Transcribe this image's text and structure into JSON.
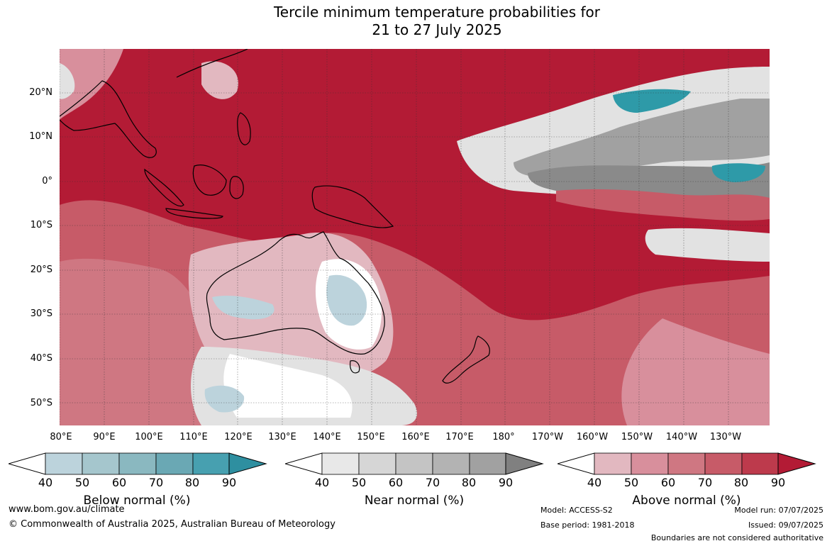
{
  "title_line1": "Tercile minimum temperature probabilities for",
  "title_line2": "21 to 27 July 2025",
  "lat_labels": [
    "20°N",
    "10°N",
    "0°",
    "10°S",
    "20°S",
    "30°S",
    "40°S",
    "50°S"
  ],
  "lon_labels": [
    "80°E",
    "90°E",
    "100°E",
    "110°E",
    "120°E",
    "130°E",
    "140°E",
    "150°E",
    "160°E",
    "170°E",
    "180°",
    "170°W",
    "160°W",
    "150°W",
    "140°W",
    "130°W"
  ],
  "colorbars": [
    {
      "label": "Below normal (%)",
      "ticks": [
        "40",
        "50",
        "60",
        "70",
        "80",
        "90"
      ],
      "colors": [
        "#bcd3dc",
        "#a5c6cd",
        "#8ab8c0",
        "#6aa8b4",
        "#47a0b0",
        "#2e8fa0"
      ]
    },
    {
      "label": "Near normal (%)",
      "ticks": [
        "40",
        "50",
        "60",
        "70",
        "80",
        "90"
      ],
      "colors": [
        "#e8e8e8",
        "#d6d6d6",
        "#c4c4c4",
        "#b3b3b3",
        "#a1a1a1",
        "#808080"
      ]
    },
    {
      "label": "Above normal (%)",
      "ticks": [
        "40",
        "50",
        "60",
        "70",
        "80",
        "90"
      ],
      "colors": [
        "#e2b8c0",
        "#d88f9c",
        "#cf7782",
        "#c75b68",
        "#bd3a4c",
        "#b31b35"
      ]
    }
  ],
  "colors": {
    "above_strong": "#b31b35",
    "above_mid": "#c75b68",
    "above_light": "#e2b8c0",
    "near_light": "#e2e2e2",
    "near_dark": "#8a8a8a",
    "below_mid": "#bcd3dc",
    "below_strong": "#2e9aa8"
  },
  "footer": {
    "website": "www.bom.gov.au/climate",
    "copyright": "© Commonwealth of Australia 2025, Australian Bureau of Meteorology",
    "model": "Model: ACCESS-S2",
    "base_period": "Base period: 1981-2018",
    "model_run": "Model run: 07/07/2025",
    "issued": "Issued: 09/07/2025",
    "disclaimer": "Boundaries are not considered authoritative"
  }
}
